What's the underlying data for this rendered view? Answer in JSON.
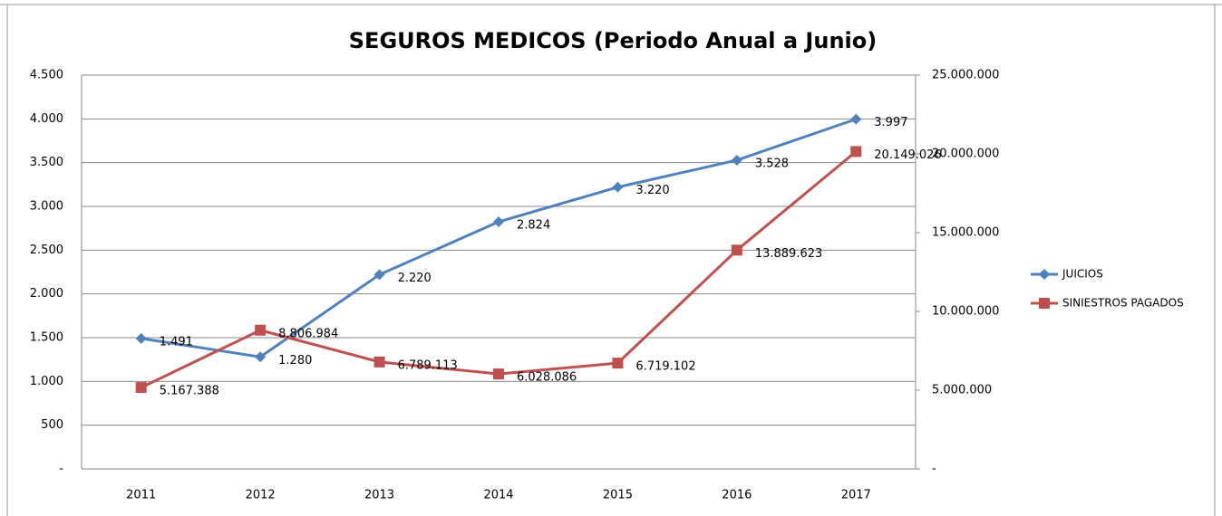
{
  "chart_data": {
    "type": "line",
    "title": "SEGUROS MEDICOS (Periodo Anual a Junio)",
    "categories": [
      "2011",
      "2012",
      "2013",
      "2014",
      "2015",
      "2016",
      "2017"
    ],
    "series": [
      {
        "name": "JUICIOS",
        "color": "#4f81bd",
        "marker": "diamond",
        "values": [
          1491,
          1280,
          2220,
          2824,
          3220,
          3528,
          3997
        ],
        "value_labels": [
          "1.491",
          "1.280",
          "2.220",
          "2.824",
          "3.220",
          "3.528",
          "3.997"
        ]
      },
      {
        "name": "SINIESTROS  PAGADOS",
        "color": "#c0504d",
        "marker": "square",
        "axis": "y2",
        "values": [
          5167388,
          8806984,
          6789113,
          6028086,
          6719102,
          13889623,
          20149026
        ],
        "value_labels": [
          "5.167.388",
          "8.806.984",
          "6.789.113",
          "6.028.086",
          "6.719.102",
          "13.889.623",
          "20.149.026"
        ]
      }
    ],
    "ylim": [
      0,
      4500
    ],
    "yticks": [
      {
        "value": 0,
        "label": "-"
      },
      500,
      {
        "value": 1000,
        "label": "1.000"
      },
      {
        "value": 1500,
        "label": "1.500"
      },
      {
        "value": 2000,
        "label": "2.000"
      },
      {
        "value": 2500,
        "label": "2.500"
      },
      {
        "value": 3000,
        "label": "3.000"
      },
      {
        "value": 3500,
        "label": "3.500"
      },
      {
        "value": 4000,
        "label": "4.000"
      },
      {
        "value": 4500,
        "label": "4.500"
      }
    ],
    "y2lim": [
      0,
      25000000
    ],
    "y2ticks": [
      {
        "value": 0,
        "label": "-"
      },
      {
        "value": 5000000,
        "label": "5.000.000"
      },
      {
        "value": 10000000,
        "label": "10.000.000"
      },
      {
        "value": 15000000,
        "label": "15.000.000"
      },
      {
        "value": 20000000,
        "label": "20.000.000"
      },
      {
        "value": 25000000,
        "label": "25.000.000"
      }
    ],
    "grid": true,
    "legend": "right"
  }
}
